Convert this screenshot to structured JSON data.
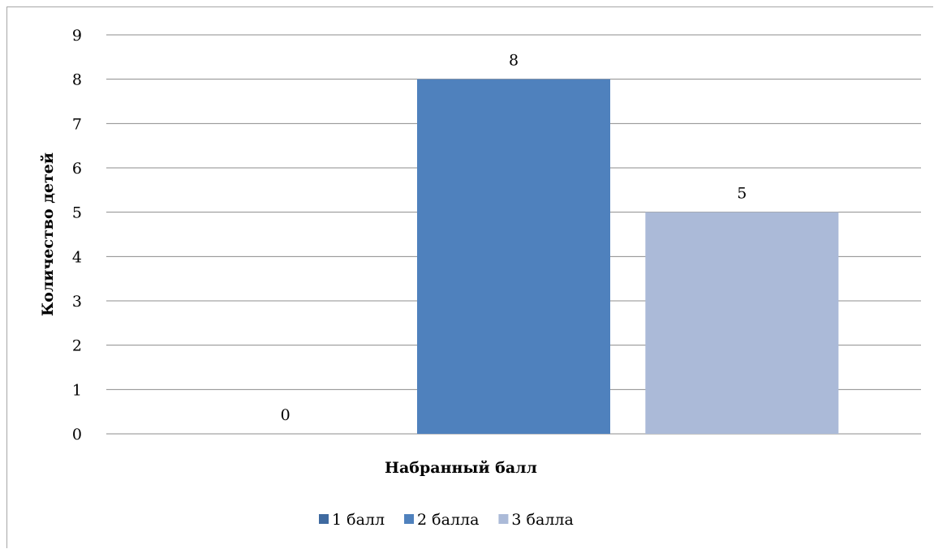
{
  "chart_data": {
    "type": "bar",
    "categories": [
      "Набранный балл"
    ],
    "series": [
      {
        "name": "1 балл",
        "values": [
          0
        ],
        "color": "#3f6aa0"
      },
      {
        "name": "2 балла",
        "values": [
          8
        ],
        "color": "#4f81bd"
      },
      {
        "name": "3 балла",
        "values": [
          5
        ],
        "color": "#abbad8"
      }
    ],
    "xlabel": "Набранный балл",
    "ylabel": "Количество детей",
    "ylim": [
      0,
      9
    ],
    "yticks": [
      "0",
      "1",
      "2",
      "3",
      "4",
      "5",
      "6",
      "7",
      "8",
      "9"
    ],
    "grid": true,
    "legend_position": "bottom",
    "data_labels": true,
    "gridline_color": "#8c8c8c"
  }
}
